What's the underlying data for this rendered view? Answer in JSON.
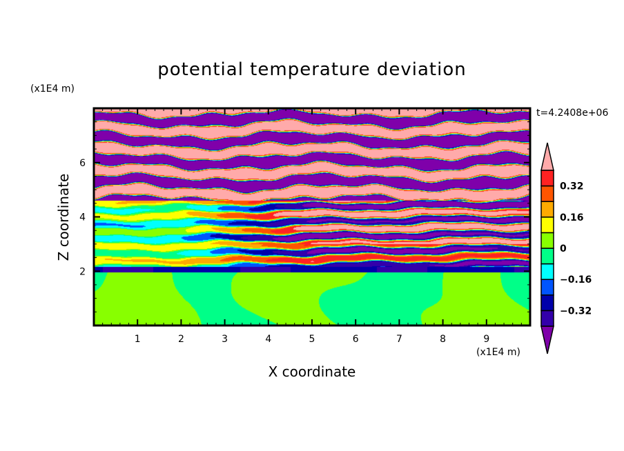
{
  "chart_data": {
    "type": "heatmap",
    "title": "potential temperature deviation",
    "xlabel": "X coordinate",
    "ylabel": "Z coordinate",
    "x_unit": "(x1E4 m)",
    "y_unit": "(x1E4 m)",
    "time_label": "t=4.2408e+06",
    "xlim": [
      0,
      10
    ],
    "ylim": [
      0,
      8
    ],
    "x_ticks": [
      1,
      2,
      3,
      4,
      5,
      6,
      7,
      8,
      9
    ],
    "x_tick_labels": [
      "1",
      "2",
      "3",
      "4",
      "5",
      "6",
      "7",
      "8",
      "9"
    ],
    "y_ticks": [
      2,
      4,
      6
    ],
    "y_tick_labels": [
      "2",
      "4",
      "6"
    ],
    "levels": [
      -0.4,
      -0.32,
      -0.24,
      -0.16,
      -0.08,
      0,
      0.08,
      0.16,
      0.24,
      0.32,
      0.4
    ],
    "colors": [
      "#3300aa",
      "#0000aa",
      "#0055ff",
      "#00ffff",
      "#00ff88",
      "#88ff00",
      "#ffff00",
      "#ffaa00",
      "#ff5500",
      "#ff2222"
    ],
    "under_color": "#7f00aa",
    "over_color": "#ffaaaa",
    "colorbar_labels": [
      "0.32",
      "0.16",
      "0",
      "-0.16",
      "-0.32"
    ],
    "colorbar_label_values": [
      0.32,
      0.16,
      0,
      -0.16,
      -0.32
    ],
    "regions": [
      {
        "z_range": [
          4.6,
          8
        ],
        "description_values": "alternating over (>0.4) and under (<-0.4) layers"
      },
      {
        "z_range": [
          2,
          4.6
        ],
        "description_values": "mixed -0.4 to 0.4 wave layers"
      },
      {
        "z_range": [
          0,
          2
        ],
        "description_values": "near zero, -0.08 to 0.08"
      }
    ]
  }
}
